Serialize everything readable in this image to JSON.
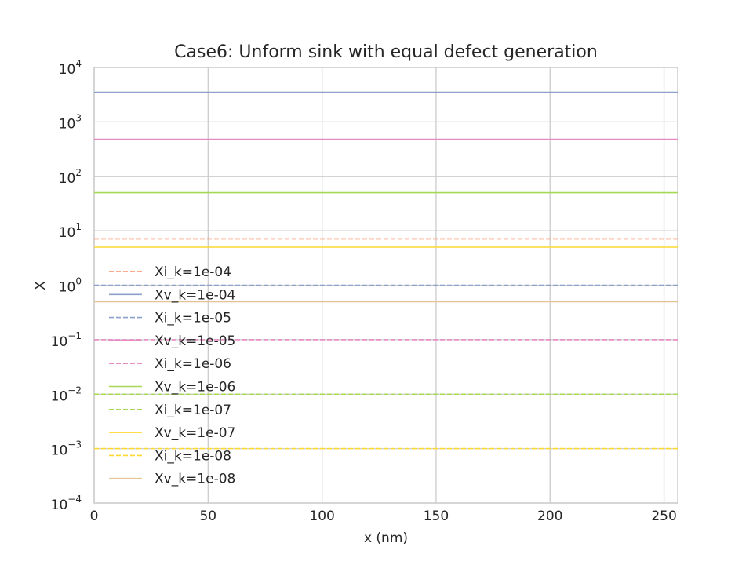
{
  "chart_data": {
    "type": "line",
    "title": "Case6: Unform sink with equal defect generation",
    "xlabel": "x (nm)",
    "ylabel": "X",
    "xlim": [
      0,
      256
    ],
    "ylim": [
      0.0001,
      10000
    ],
    "yscale": "log",
    "grid": true,
    "legend_position": "center-left",
    "xticks": [
      0,
      50,
      100,
      150,
      200,
      250
    ],
    "yticks": [
      {
        "base": "10",
        "exp": "4",
        "value": 10000
      },
      {
        "base": "10",
        "exp": "3",
        "value": 1000
      },
      {
        "base": "10",
        "exp": "2",
        "value": 100
      },
      {
        "base": "10",
        "exp": "1",
        "value": 10
      },
      {
        "base": "10",
        "exp": "0",
        "value": 1
      },
      {
        "base": "10",
        "exp": "−1",
        "value": 0.1
      },
      {
        "base": "10",
        "exp": "−2",
        "value": 0.01
      },
      {
        "base": "10",
        "exp": "−3",
        "value": 0.001
      },
      {
        "base": "10",
        "exp": "−4",
        "value": 0.0001
      }
    ],
    "series": [
      {
        "name": "Xi_k=1e-04",
        "style": "dashed",
        "color": "#fc8d62",
        "x": [
          0,
          256
        ],
        "values": [
          7.1,
          7.1
        ]
      },
      {
        "name": "Xv_k=1e-04",
        "style": "solid",
        "color": "#8da0cb",
        "x": [
          0,
          256
        ],
        "values": [
          3500,
          3500
        ]
      },
      {
        "name": "Xi_k=1e-05",
        "style": "dashed",
        "color": "#8da0cb",
        "x": [
          0,
          256
        ],
        "values": [
          1,
          1
        ]
      },
      {
        "name": "Xv_k=1e-05",
        "style": "solid",
        "color": "#e78ac3",
        "x": [
          0,
          256
        ],
        "values": [
          480,
          480
        ]
      },
      {
        "name": "Xi_k=1e-06",
        "style": "dashed",
        "color": "#e78ac3",
        "x": [
          0,
          256
        ],
        "values": [
          0.1,
          0.1
        ]
      },
      {
        "name": "Xv_k=1e-06",
        "style": "solid",
        "color": "#a6d854",
        "x": [
          0,
          256
        ],
        "values": [
          50,
          50
        ]
      },
      {
        "name": "Xi_k=1e-07",
        "style": "dashed",
        "color": "#a6d854",
        "x": [
          0,
          256
        ],
        "values": [
          0.01,
          0.01
        ]
      },
      {
        "name": "Xv_k=1e-07",
        "style": "solid",
        "color": "#ffd92f",
        "x": [
          0,
          256
        ],
        "values": [
          5,
          5
        ]
      },
      {
        "name": "Xi_k=1e-08",
        "style": "dashed",
        "color": "#ffd92f",
        "x": [
          0,
          256
        ],
        "values": [
          0.001,
          0.001
        ]
      },
      {
        "name": "Xv_k=1e-08",
        "style": "solid",
        "color": "#e5c494",
        "x": [
          0,
          256
        ],
        "values": [
          0.5,
          0.5
        ]
      }
    ]
  }
}
